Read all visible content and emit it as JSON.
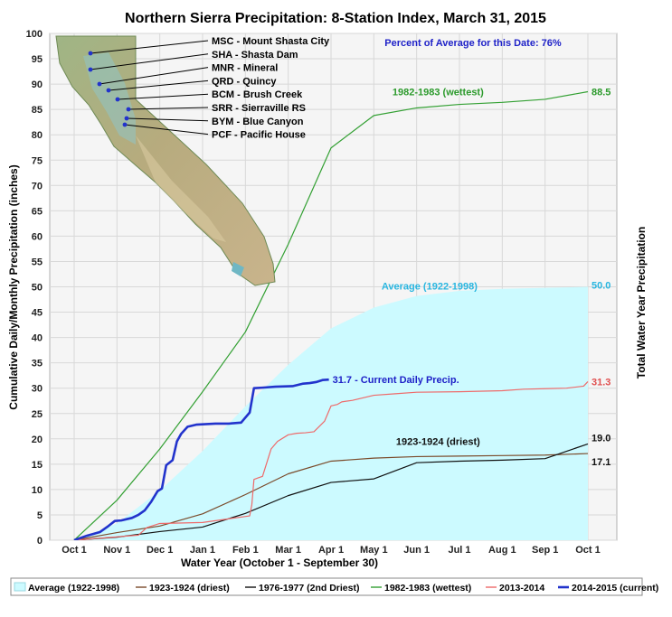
{
  "chart_data": {
    "type": "line",
    "title": "Northern Sierra Precipitation: 8-Station Index, March 31, 2015",
    "xlabel": "Water Year (October 1 - September 30)",
    "ylabel": "Cumulative Daily/Monthly Precipitation (inches)",
    "ylabel_right": "Total Water Year Precipitation",
    "ylim": [
      0,
      100
    ],
    "y_ticks": [
      0,
      5,
      10,
      15,
      20,
      25,
      30,
      35,
      40,
      45,
      50,
      55,
      60,
      65,
      70,
      75,
      80,
      85,
      90,
      95,
      100
    ],
    "x_ticks": [
      "Oct 1",
      "Nov 1",
      "Dec 1",
      "Jan 1",
      "Feb 1",
      "Mar 1",
      "Apr 1",
      "May 1",
      "Jun 1",
      "Jul 1",
      "Aug 1",
      "Sep 1",
      "Oct 1"
    ],
    "x_unit": "months since Oct 1",
    "grid": true,
    "legend_position": "bottom",
    "percent_note": "Percent of Average for this Date: 76%",
    "stations": [
      "MSC - Mount Shasta City",
      "SHA - Shasta Dam",
      "MNR - Mineral",
      "QRD - Quincy",
      "BCM - Brush Creek",
      "SRR - Sierraville RS",
      "BYM - Blue Canyon",
      "PCF - Pacific House"
    ],
    "series": [
      {
        "name": "Average (1922-1998)",
        "style": "area",
        "color": "#ccfaff",
        "x": [
          0,
          1,
          2,
          3,
          4,
          5,
          6,
          7,
          8,
          9,
          10,
          11,
          12
        ],
        "values": [
          0,
          3.3,
          9.8,
          17.6,
          26.4,
          34.6,
          41.8,
          45.9,
          48.2,
          49.2,
          49.6,
          49.8,
          50.0
        ],
        "end_label": "50.0",
        "annotation": "Average (1922-1998)"
      },
      {
        "name": "1923-1924 (driest)",
        "style": "line",
        "color": "#7a4a2a",
        "x": [
          0,
          1,
          2,
          3,
          4,
          5,
          6,
          7,
          8,
          9,
          10,
          11,
          12
        ],
        "values": [
          0,
          1.5,
          2.8,
          5.2,
          9.0,
          13.1,
          15.6,
          16.2,
          16.5,
          16.6,
          16.7,
          16.8,
          17.1
        ],
        "end_label": "17.1",
        "annotation": "1923-1924 (driest)"
      },
      {
        "name": "1976-1977 (2nd Driest)",
        "style": "line",
        "color": "#111111",
        "x": [
          0,
          1,
          2,
          3,
          4,
          5,
          6,
          7,
          8,
          9,
          10,
          11,
          12
        ],
        "values": [
          0,
          0.6,
          1.7,
          2.6,
          5.3,
          8.8,
          11.4,
          12.1,
          15.3,
          15.6,
          15.8,
          16.1,
          19.0
        ],
        "end_label": "19.0"
      },
      {
        "name": "1982-1983 (wettest)",
        "style": "line",
        "color": "#33a033",
        "x": [
          0,
          1,
          2,
          3,
          4,
          5,
          6,
          7,
          8,
          9,
          10,
          11,
          12
        ],
        "values": [
          0,
          7.9,
          18.0,
          29.3,
          41.1,
          58.4,
          77.4,
          83.8,
          85.3,
          86.0,
          86.4,
          87.0,
          88.5
        ],
        "end_label": "88.5",
        "annotation": "1982-1983 (wettest)"
      },
      {
        "name": "2013-2014",
        "style": "line",
        "color": "#ee6a6a",
        "x": [
          0,
          1.5,
          1.7,
          2,
          3,
          4.1,
          4.15,
          4.2,
          4.3,
          4.4,
          4.6,
          4.75,
          5,
          5.2,
          5.4,
          5.6,
          5.85,
          6.0,
          6.15,
          6.25,
          6.5,
          7,
          7.5,
          8,
          9,
          10,
          10.5,
          11,
          11.5,
          11.9,
          12
        ],
        "values": [
          0,
          1.0,
          2.5,
          3.3,
          3.5,
          4.8,
          7.0,
          12.0,
          12.3,
          12.6,
          18.0,
          19.5,
          20.8,
          21.1,
          21.2,
          21.4,
          23.5,
          26.5,
          26.8,
          27.3,
          27.6,
          28.6,
          28.9,
          29.2,
          29.3,
          29.5,
          29.8,
          29.9,
          30.0,
          30.4,
          31.3
        ],
        "end_label": "31.3"
      },
      {
        "name": "2014-2015 (current)",
        "style": "line",
        "color": "#2233cc",
        "x": [
          0,
          0.3,
          0.6,
          0.8,
          0.95,
          1.1,
          1.35,
          1.5,
          1.65,
          1.8,
          1.95,
          2.05,
          2.15,
          2.3,
          2.4,
          2.5,
          2.65,
          2.85,
          3.05,
          3.3,
          3.6,
          3.9,
          4.1,
          4.2,
          4.4,
          4.7,
          5.1,
          5.35,
          5.5,
          5.65,
          5.8,
          5.95
        ],
        "values": [
          0,
          0.9,
          1.6,
          2.8,
          3.8,
          3.9,
          4.4,
          5.0,
          5.9,
          7.6,
          9.7,
          10.2,
          14.8,
          15.8,
          19.5,
          21.0,
          22.4,
          22.8,
          22.9,
          23.0,
          23.0,
          23.2,
          25.2,
          30.0,
          30.1,
          30.3,
          30.4,
          30.9,
          31.0,
          31.2,
          31.6,
          31.7
        ],
        "end_label": "31.7 -  Current Daily Precip."
      }
    ]
  }
}
